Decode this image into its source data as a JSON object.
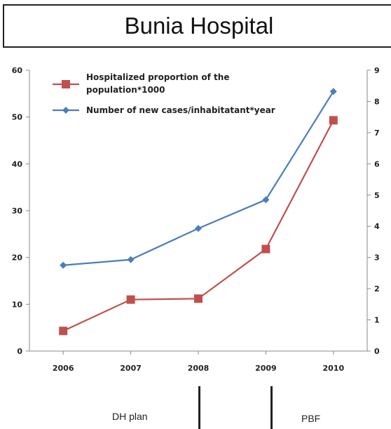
{
  "title": "Bunia Hospital",
  "chart_data": {
    "type": "line",
    "x": [
      "2006",
      "2007",
      "2008",
      "2009",
      "2010"
    ],
    "series": [
      {
        "name": "Hospitalized proportion of the population*1000",
        "axis": "left",
        "color": "#c0504d",
        "marker": "square",
        "values": [
          4.3,
          11.0,
          11.2,
          21.8,
          49.3
        ]
      },
      {
        "name": "Number of new cases/inhabitatant*year",
        "axis": "right",
        "color": "#4a7ebb",
        "marker": "diamond",
        "values": [
          2.75,
          2.93,
          3.93,
          4.85,
          8.32
        ]
      }
    ],
    "y_left": {
      "ylim": [
        0,
        60
      ],
      "ticks": [
        "0",
        "10",
        "20",
        "30",
        "40",
        "50",
        "60"
      ]
    },
    "y_right": {
      "ylim": [
        0,
        9
      ],
      "ticks": [
        "0",
        "1",
        "2",
        "3",
        "4",
        "5",
        "6",
        "7",
        "8",
        "9"
      ]
    },
    "grid": false,
    "legend_position": "top-left"
  },
  "periods": [
    {
      "label": "DH plan"
    },
    {
      "label": "PBF"
    }
  ]
}
